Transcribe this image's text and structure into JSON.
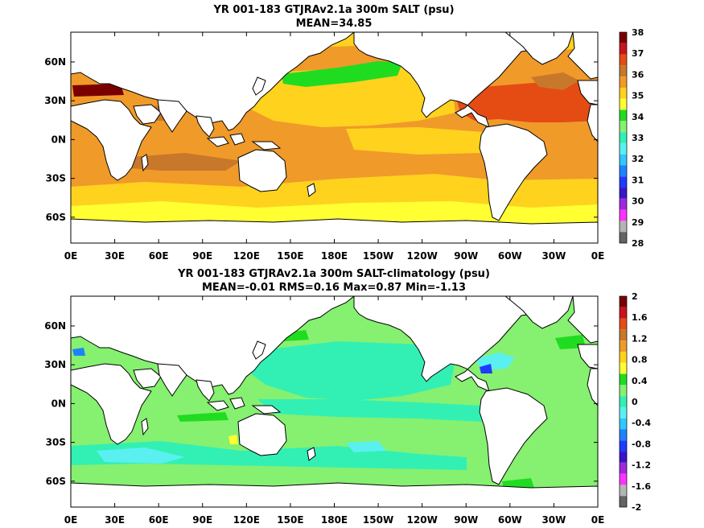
{
  "chart_data": [
    {
      "type": "heatmap",
      "title": "YR 001-183 GTJRAv2.1a 300m SALT (psu)",
      "subtitle": "MEAN=34.85",
      "x_ticks": [
        "0E",
        "30E",
        "60E",
        "90E",
        "120E",
        "150E",
        "180E",
        "150W",
        "120W",
        "90W",
        "60W",
        "30W",
        "0E"
      ],
      "y_ticks": [
        "60N",
        "30N",
        "0N",
        "30S",
        "60S"
      ],
      "colorbar": {
        "labels": [
          "38",
          "37",
          "36",
          "35",
          "34",
          "33",
          "32",
          "31",
          "30",
          "29",
          "28"
        ],
        "colors": [
          "#7a0000",
          "#c8141e",
          "#e44c14",
          "#c8782a",
          "#f09a2a",
          "#ffd21e",
          "#ffff32",
          "#20dc20",
          "#86f070",
          "#32f0b4",
          "#5af0f0",
          "#30c8ff",
          "#1e82ff",
          "#1e3cff",
          "#3c14c8",
          "#a028dc",
          "#ff32ff",
          "#b4b4b4",
          "#646464"
        ]
      },
      "regions": {
        "base": "#f09a2a",
        "north_pacific": "#ffd21e",
        "subpolar_pacific": "#20dc20",
        "north_atlantic": "#e44c14",
        "south_band": "#ffd21e",
        "southern_ocean": "#ffff32"
      }
    },
    {
      "type": "heatmap",
      "title": "YR 001-183 GTJRAv2.1a 300m SALT-climatology (psu)",
      "subtitle": "MEAN=-0.01   RMS=0.16   Max=0.87   Min=-1.13",
      "x_ticks": [
        "0E",
        "30E",
        "60E",
        "90E",
        "120E",
        "150E",
        "180E",
        "150W",
        "120W",
        "90W",
        "60W",
        "30W",
        "0E"
      ],
      "y_ticks": [
        "60N",
        "30N",
        "0N",
        "30S",
        "60S"
      ],
      "colorbar": {
        "labels": [
          "2",
          "1.6",
          "1.2",
          "0.8",
          "0.4",
          "0",
          "-0.4",
          "-0.8",
          "-1.2",
          "-1.6",
          "-2"
        ],
        "colors": [
          "#7a0000",
          "#c8141e",
          "#e44c14",
          "#c8782a",
          "#f09a2a",
          "#ffd21e",
          "#ffff32",
          "#20dc20",
          "#86f070",
          "#32f0b4",
          "#5af0f0",
          "#30c8ff",
          "#1e82ff",
          "#1e3cff",
          "#3c14c8",
          "#a028dc",
          "#ff32ff",
          "#b4b4b4",
          "#646464"
        ]
      },
      "regions": {
        "base": "#86f070",
        "tropical_band": "#32f0b4",
        "southern_band": "#5af0f0",
        "positive_patch": "#20dc20"
      }
    }
  ]
}
